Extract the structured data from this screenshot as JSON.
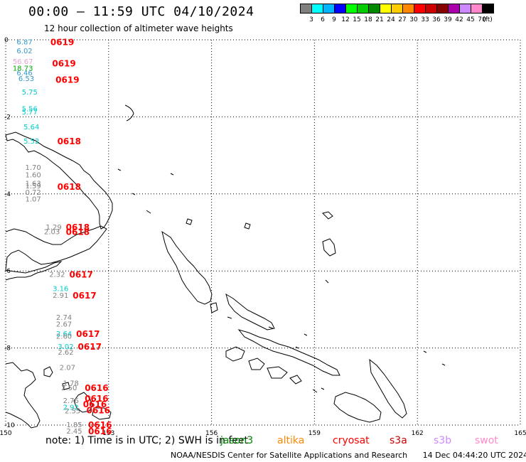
{
  "header": {
    "title": "00:00 – 11:59 UTC 04/10/2024",
    "subtitle": "12 hour collection of altimeter wave heights"
  },
  "colorbar": {
    "unit": "(ft)",
    "swatches": [
      {
        "color": "#7f7f7f",
        "label": "3"
      },
      {
        "color": "#00ffff",
        "label": "6"
      },
      {
        "color": "#00b4ff",
        "label": "9"
      },
      {
        "color": "#0000ff",
        "label": "12"
      },
      {
        "color": "#00ff00",
        "label": "15"
      },
      {
        "color": "#00cc00",
        "label": "18"
      },
      {
        "color": "#008800",
        "label": "21"
      },
      {
        "color": "#ffff00",
        "label": "24"
      },
      {
        "color": "#ffcc00",
        "label": "27"
      },
      {
        "color": "#ff8800",
        "label": "30"
      },
      {
        "color": "#ff0000",
        "label": "33"
      },
      {
        "color": "#cc0000",
        "label": "36"
      },
      {
        "color": "#880000",
        "label": "39"
      },
      {
        "color": "#aa00aa",
        "label": "42"
      },
      {
        "color": "#cc88ff",
        "label": "45"
      },
      {
        "color": "#ff88cc",
        "label": "70"
      },
      {
        "color": "#000000",
        "label": ""
      }
    ]
  },
  "map": {
    "lon_range": [
      150,
      165
    ],
    "lat_range": [
      0,
      -10
    ],
    "lon_ticks": [
      "150",
      "153",
      "156",
      "159",
      "162",
      "165"
    ],
    "lat_ticks": [
      "0",
      "-2",
      "-4",
      "-6",
      "-8",
      "-10"
    ],
    "colors": {
      "gray": "#7f7f7f",
      "cyan": "#00cccc",
      "lightblue": "#3399cc",
      "green": "#00aa00",
      "pink": "#e8a0d0",
      "red": "#ff0000"
    },
    "wave_labels": [
      {
        "lon": 150.55,
        "lat": -0.05,
        "text": "6.87",
        "color": "lightblue"
      },
      {
        "lon": 150.55,
        "lat": -0.28,
        "text": "6.02",
        "color": "lightblue"
      },
      {
        "lon": 150.5,
        "lat": -0.55,
        "text": "56.67",
        "color": "pink"
      },
      {
        "lon": 150.5,
        "lat": -0.73,
        "text": "18.73",
        "color": "green"
      },
      {
        "lon": 150.55,
        "lat": -0.85,
        "text": "6.46",
        "color": "lightblue"
      },
      {
        "lon": 150.6,
        "lat": -1.0,
        "text": "6.53",
        "color": "lightblue"
      },
      {
        "lon": 150.7,
        "lat": -1.35,
        "text": "5.75",
        "color": "cyan"
      },
      {
        "lon": 150.7,
        "lat": -1.78,
        "text": "5.56",
        "color": "cyan"
      },
      {
        "lon": 150.7,
        "lat": -1.86,
        "text": "5.77",
        "color": "cyan"
      },
      {
        "lon": 150.75,
        "lat": -2.25,
        "text": "5.64",
        "color": "cyan"
      },
      {
        "lon": 150.75,
        "lat": -2.62,
        "text": "5.52",
        "color": "cyan"
      },
      {
        "lon": 150.8,
        "lat": -3.3,
        "text": "1.70",
        "color": "gray"
      },
      {
        "lon": 150.8,
        "lat": -3.5,
        "text": "1.60",
        "color": "gray"
      },
      {
        "lon": 150.8,
        "lat": -3.72,
        "text": "1.63",
        "color": "gray"
      },
      {
        "lon": 150.8,
        "lat": -3.78,
        "text": "1.59",
        "color": "gray"
      },
      {
        "lon": 150.8,
        "lat": -3.95,
        "text": "0.72",
        "color": "gray"
      },
      {
        "lon": 150.8,
        "lat": -4.12,
        "text": "1.07",
        "color": "gray"
      },
      {
        "lon": 151.4,
        "lat": -4.85,
        "text": "1.29",
        "color": "gray"
      },
      {
        "lon": 151.35,
        "lat": -4.97,
        "text": "2.03",
        "color": "gray"
      },
      {
        "lon": 151.5,
        "lat": -6.08,
        "text": "2.32",
        "color": "gray"
      },
      {
        "lon": 151.6,
        "lat": -6.45,
        "text": "3.16",
        "color": "cyan"
      },
      {
        "lon": 151.6,
        "lat": -6.62,
        "text": "2.91",
        "color": "gray"
      },
      {
        "lon": 151.7,
        "lat": -7.2,
        "text": "2.74",
        "color": "gray"
      },
      {
        "lon": 151.7,
        "lat": -7.37,
        "text": "2.67",
        "color": "gray"
      },
      {
        "lon": 151.7,
        "lat": -7.62,
        "text": "2.64",
        "color": "cyan"
      },
      {
        "lon": 151.7,
        "lat": -7.68,
        "text": "2.60",
        "color": "gray"
      },
      {
        "lon": 151.75,
        "lat": -7.95,
        "text": "3.02",
        "color": "cyan"
      },
      {
        "lon": 151.75,
        "lat": -8.1,
        "text": "2.62",
        "color": "gray"
      },
      {
        "lon": 151.8,
        "lat": -8.5,
        "text": "2.07",
        "color": "gray"
      },
      {
        "lon": 151.9,
        "lat": -8.9,
        "text": "1.78",
        "color": "gray"
      },
      {
        "lon": 151.85,
        "lat": -9.02,
        "text": "2.50",
        "color": "gray"
      },
      {
        "lon": 151.9,
        "lat": -9.35,
        "text": "2.76",
        "color": "gray"
      },
      {
        "lon": 151.9,
        "lat": -9.53,
        "text": "2.92",
        "color": "cyan"
      },
      {
        "lon": 151.95,
        "lat": -9.62,
        "text": "2.55",
        "color": "gray"
      },
      {
        "lon": 152.0,
        "lat": -9.98,
        "text": "1.85",
        "color": "gray"
      },
      {
        "lon": 152.0,
        "lat": -10.15,
        "text": "2.45",
        "color": "gray"
      }
    ],
    "time_labels": [
      {
        "lon": 151.65,
        "lat": -0.05,
        "text": "0619"
      },
      {
        "lon": 151.7,
        "lat": -0.6,
        "text": "0619"
      },
      {
        "lon": 151.8,
        "lat": -1.02,
        "text": "0619"
      },
      {
        "lon": 151.85,
        "lat": -2.62,
        "text": "0618"
      },
      {
        "lon": 151.85,
        "lat": -3.8,
        "text": "0618"
      },
      {
        "lon": 152.1,
        "lat": -4.85,
        "text": "0618"
      },
      {
        "lon": 152.1,
        "lat": -4.97,
        "text": "0618"
      },
      {
        "lon": 152.2,
        "lat": -6.08,
        "text": "0617"
      },
      {
        "lon": 152.3,
        "lat": -6.62,
        "text": "0617"
      },
      {
        "lon": 152.4,
        "lat": -7.62,
        "text": "0617"
      },
      {
        "lon": 152.45,
        "lat": -7.95,
        "text": "0617"
      },
      {
        "lon": 152.65,
        "lat": -9.02,
        "text": "0616"
      },
      {
        "lon": 152.65,
        "lat": -9.3,
        "text": "0616"
      },
      {
        "lon": 152.6,
        "lat": -9.45,
        "text": "0616"
      },
      {
        "lon": 152.7,
        "lat": -9.6,
        "text": "0616"
      },
      {
        "lon": 152.75,
        "lat": -9.98,
        "text": "0616"
      },
      {
        "lon": 152.75,
        "lat": -10.15,
        "text": "0616"
      }
    ]
  },
  "note": {
    "text": "note:  1) Time is in UTC;  2) SWH is in feet",
    "missions": [
      {
        "name": "jason3",
        "color": "#008800"
      },
      {
        "name": "altika",
        "color": "#ff8800"
      },
      {
        "name": "cryosat",
        "color": "#ff0000"
      },
      {
        "name": "s3a",
        "color": "#cc0000"
      },
      {
        "name": "s3b",
        "color": "#cc88ff"
      },
      {
        "name": "swot",
        "color": "#ff88cc"
      }
    ]
  },
  "footer": {
    "agency": "NOAA/NESDIS Center for Satellite Applications and Research",
    "timestamp": "14 Dec 04:44:20 UTC 2024"
  }
}
